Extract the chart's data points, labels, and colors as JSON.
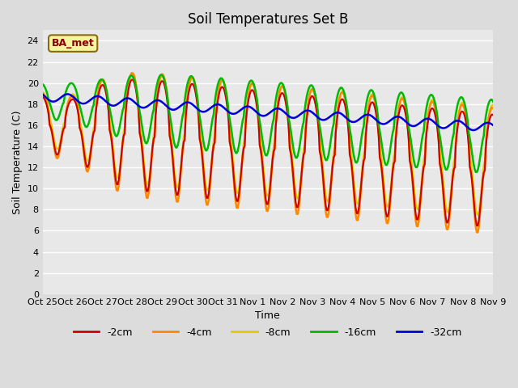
{
  "title": "Soil Temperatures Set B",
  "xlabel": "Time",
  "ylabel": "Soil Temperature (C)",
  "ylim": [
    0,
    25
  ],
  "yticks": [
    0,
    2,
    4,
    6,
    8,
    10,
    12,
    14,
    16,
    18,
    20,
    22,
    24
  ],
  "bg_color": "#dcdcdc",
  "plot_bg": "#e8e8e8",
  "legend_label": "BA_met",
  "series_colors": {
    "-2cm": "#cc0000",
    "-4cm": "#ff8800",
    "-8cm": "#ddcc00",
    "-16cm": "#00bb00",
    "-32cm": "#0000dd"
  },
  "xtick_labels": [
    "Oct 25",
    "Oct 26",
    "Oct 27",
    "Oct 28",
    "Oct 29",
    "Oct 30",
    "Oct 31",
    "Nov 1",
    "Nov 2",
    "Nov 3",
    "Nov 4",
    "Nov 5",
    "Nov 6",
    "Nov 7",
    "Nov 8",
    "Nov 9"
  ],
  "n_points": 481
}
